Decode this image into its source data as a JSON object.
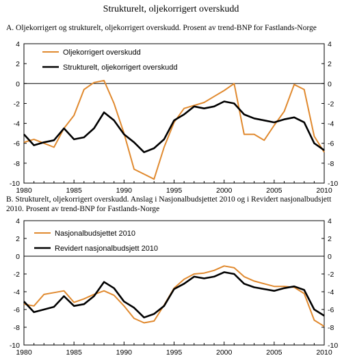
{
  "title": "Strukturelt, oljekorrigert overskudd",
  "colors": {
    "orange": "#E0892E",
    "black": "#000000"
  },
  "chart_data": [
    {
      "type": "line",
      "title": "A. Oljekorrigert og strukturelt, oljekorrigert overskudd. Prosent av trend-BNP for Fastlands-Norge",
      "xlim": [
        1980,
        2010
      ],
      "ylim": [
        -10,
        4
      ],
      "yticks": [
        "4",
        "2",
        "0",
        "-2",
        "-4",
        "-6",
        "-8",
        "-10"
      ],
      "xticks": [
        "1980",
        "1985",
        "1990",
        "1995",
        "2000",
        "2005",
        "2010"
      ],
      "grid": false,
      "dual_y_axis": true,
      "legend": "top-left",
      "x": [
        1980,
        1981,
        1982,
        1983,
        1984,
        1985,
        1986,
        1987,
        1988,
        1989,
        1990,
        1991,
        1992,
        1993,
        1994,
        1995,
        1996,
        1997,
        1998,
        1999,
        2000,
        2001,
        2002,
        2003,
        2004,
        2005,
        2006,
        2007,
        2008,
        2009,
        2010
      ],
      "series": [
        {
          "name": "Oljekorrigert overskudd",
          "color": "#E0892E",
          "values": [
            -5.9,
            -5.6,
            -6.0,
            -6.4,
            -4.5,
            -3.2,
            -0.6,
            0.1,
            0.3,
            -2.0,
            -5.0,
            -8.6,
            -9.1,
            -9.6,
            -6.4,
            -3.9,
            -2.5,
            -2.2,
            -1.9,
            -1.3,
            -0.7,
            0.0,
            -5.1,
            -5.1,
            -5.7,
            -4.2,
            -2.8,
            -0.1,
            -0.6,
            -5.3,
            -6.9
          ]
        },
        {
          "name": "Strukturelt, oljekorrigert overskudd",
          "color": "#000000",
          "values": [
            -5.1,
            -6.2,
            -5.9,
            -5.7,
            -4.5,
            -5.6,
            -5.4,
            -4.5,
            -2.9,
            -3.7,
            -5.1,
            -5.9,
            -6.9,
            -6.5,
            -5.6,
            -3.7,
            -3.1,
            -2.3,
            -2.5,
            -2.3,
            -1.8,
            -2.0,
            -3.1,
            -3.5,
            -3.7,
            -3.9,
            -3.6,
            -3.4,
            -3.9,
            -6.0,
            -6.7
          ]
        }
      ]
    },
    {
      "type": "line",
      "title": "B. Strukturelt, oljekorrigert overskudd. Anslag i Nasjonalbudsjettet 2010 og i Revidert nasjonalbudsjett 2010. Prosent av trend-BNP for Fastlands-Norge",
      "xlim": [
        1980,
        2010
      ],
      "ylim": [
        -10,
        4
      ],
      "yticks": [
        "4",
        "2",
        "0",
        "-2",
        "-4",
        "-6",
        "-8",
        "-10"
      ],
      "xticks": [
        "1980",
        "1985",
        "1990",
        "1995",
        "2000",
        "2005",
        "2010"
      ],
      "grid": false,
      "dual_y_axis": true,
      "legend": "top-left",
      "x": [
        1980,
        1981,
        1982,
        1983,
        1984,
        1985,
        1986,
        1987,
        1988,
        1989,
        1990,
        1991,
        1992,
        1993,
        1994,
        1995,
        1996,
        1997,
        1998,
        1999,
        2000,
        2001,
        2002,
        2003,
        2004,
        2005,
        2006,
        2007,
        2008,
        2009,
        2010
      ],
      "series": [
        {
          "name": "Nasjonalbudsjettet 2010",
          "color": "#E0892E",
          "values": [
            -5.4,
            -5.6,
            -4.3,
            -4.1,
            -3.9,
            -5.2,
            -4.8,
            -4.3,
            -3.9,
            -4.4,
            -5.6,
            -7.0,
            -7.5,
            -7.3,
            -5.5,
            -3.6,
            -2.6,
            -2.0,
            -1.9,
            -1.6,
            -1.1,
            -1.3,
            -2.3,
            -2.8,
            -3.1,
            -3.4,
            -3.4,
            -3.5,
            -4.2,
            -7.2,
            -7.9
          ]
        },
        {
          "name": "Revidert nasjonalbudsjett 2010",
          "color": "#000000",
          "values": [
            -5.1,
            -6.3,
            -6.0,
            -5.7,
            -4.5,
            -5.6,
            -5.4,
            -4.5,
            -2.9,
            -3.6,
            -5.1,
            -5.8,
            -6.9,
            -6.5,
            -5.6,
            -3.7,
            -3.1,
            -2.3,
            -2.5,
            -2.3,
            -1.8,
            -2.0,
            -3.1,
            -3.5,
            -3.7,
            -3.9,
            -3.6,
            -3.4,
            -3.8,
            -6.0,
            -6.7
          ]
        }
      ]
    }
  ]
}
